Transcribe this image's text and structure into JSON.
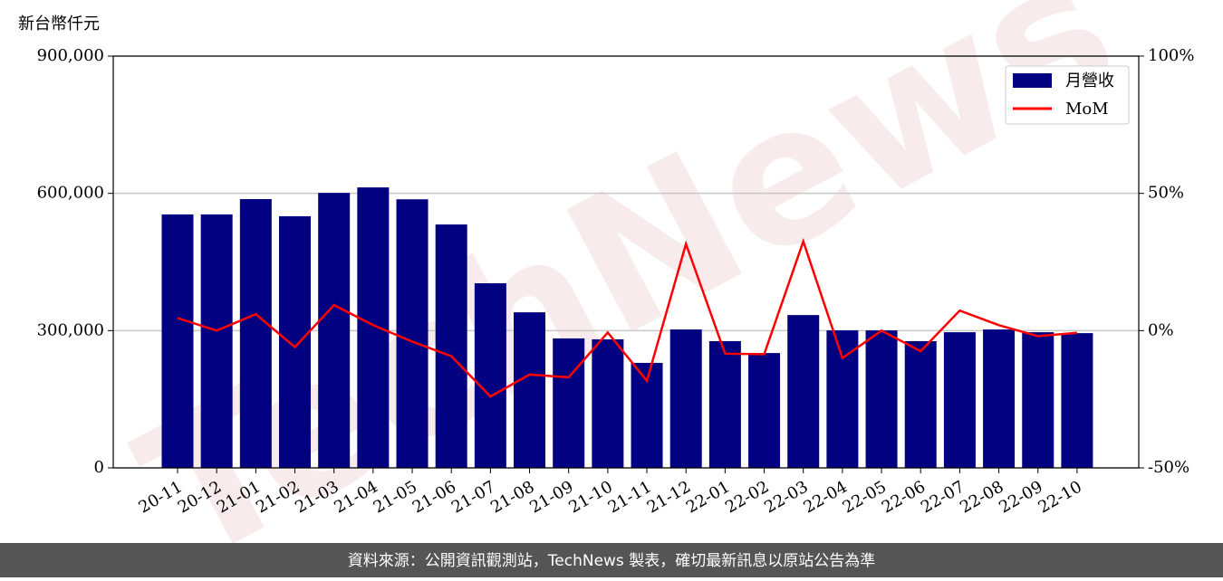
{
  "chart_data": {
    "type": "bar_line",
    "ylabel": "新台幣仟元",
    "watermark": "TechNews",
    "source": "資料來源：公開資訊觀測站，TechNews 製表，確切最新訊息以原站公告為準",
    "categories": [
      "20-11",
      "20-12",
      "21-01",
      "21-02",
      "21-03",
      "21-04",
      "21-05",
      "21-06",
      "21-07",
      "21-08",
      "21-09",
      "21-10",
      "21-11",
      "21-12",
      "22-01",
      "22-02",
      "22-03",
      "22-04",
      "22-05",
      "22-06",
      "22-07",
      "22-08",
      "22-09",
      "22-10"
    ],
    "series": [
      {
        "name": "月營收",
        "color": "#000080",
        "values": [
          554000,
          554000,
          587500,
          550000,
          601000,
          613000,
          587000,
          532000,
          403500,
          340000,
          283000,
          281000,
          229500,
          302500,
          277000,
          251000,
          334000,
          300500,
          300500,
          277000,
          296500,
          302500,
          296500,
          294500
        ]
      },
      {
        "name": "MoM",
        "color": "#ff0000",
        "axis": "y2",
        "values": [
          4.6,
          0,
          6,
          -6,
          9.3,
          2,
          -4,
          -9.3,
          -24,
          -16,
          -17,
          -0.7,
          -18.3,
          31.6,
          -8.4,
          -8.6,
          32.5,
          -10,
          0,
          -7.5,
          7.3,
          2,
          -2,
          -0.8
        ]
      }
    ],
    "ylim": [
      0,
      900000
    ],
    "yticks": [
      0,
      {
        "value": 300000,
        "label": "300,000"
      },
      {
        "value": 600000,
        "label": "600,000"
      },
      {
        "value": 900000,
        "label": "900,000"
      }
    ],
    "y2lim": [
      -50,
      100
    ],
    "y2ticks": [
      {
        "value": -50,
        "label": "-50%"
      },
      {
        "value": 0,
        "label": "0%"
      },
      {
        "value": 50,
        "label": "50%"
      },
      {
        "value": 100,
        "label": "100%"
      }
    ],
    "grid": true,
    "legend": "upper right"
  }
}
